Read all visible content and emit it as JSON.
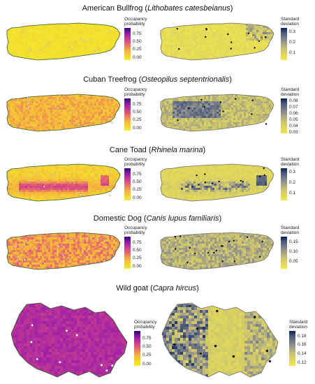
{
  "colors": {
    "occupancy_gradient": [
      "#f3f02a",
      "#f4b33c",
      "#e2567a",
      "#a020a8",
      "#2d0a7e"
    ],
    "sd_gradient": [
      "#f3e84a",
      "#c9c271",
      "#8e8e8e",
      "#4b5a7c",
      "#0a2052"
    ],
    "land_yellow": "#e8e04a",
    "outline": "#2e5d2a"
  },
  "legend_labels": {
    "occupancy": "Occupancy probability",
    "sd": "Standard deviation"
  },
  "panels": [
    {
      "common_name": "American Bullfrog (",
      "scientific_name": "Lithobates catesbeianus",
      "close": ")",
      "occ_ticks": [
        "0.75",
        "0.50",
        "0.25",
        "0.00"
      ],
      "sd_ticks": [
        "0.3",
        "0.2",
        "0.1"
      ]
    },
    {
      "common_name": "Cuban Treefrog (",
      "scientific_name": "Osteopilus septentrionalis",
      "close": ")",
      "occ_ticks": [
        "0.75",
        "0.50",
        "0.25",
        "0.00"
      ],
      "sd_ticks": [
        "0.08",
        "0.07",
        "0.06",
        "0.05",
        "0.04",
        "0.03"
      ]
    },
    {
      "common_name": "Cane Toad (",
      "scientific_name": "Rhinela marina",
      "close": ")",
      "occ_ticks": [
        "0.75",
        "0.50",
        "0.25",
        "0.00"
      ],
      "sd_ticks": [
        "0.3",
        "0.2",
        "0.1"
      ]
    },
    {
      "common_name": "Domestic Dog (",
      "scientific_name": "Canis lupus familiaris",
      "close": ")",
      "occ_ticks": [
        "0.75",
        "0.50",
        "0.25",
        "0.00"
      ],
      "sd_ticks": [
        "0.15",
        "0.10",
        "0.05"
      ]
    },
    {
      "common_name": "Wild goat (",
      "scientific_name": "Capra hircus",
      "close": ")",
      "occ_ticks": [
        "0.75",
        "0.50",
        "0.25",
        "0.00"
      ],
      "sd_ticks": [
        "0.18",
        "0.16",
        "0.14",
        "0.12"
      ]
    }
  ]
}
